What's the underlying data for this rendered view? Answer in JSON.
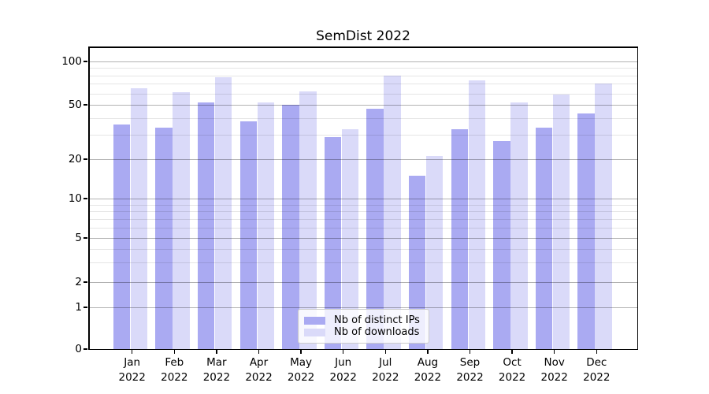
{
  "chart_data": {
    "type": "bar",
    "title": "SemDist 2022",
    "categories": [
      "Jan",
      "Feb",
      "Mar",
      "Apr",
      "May",
      "Jun",
      "Jul",
      "Aug",
      "Sep",
      "Oct",
      "Nov",
      "Dec"
    ],
    "category_year": "2022",
    "series": [
      {
        "name": "Nb of distinct IPs",
        "color": "#aaaaf2",
        "values": [
          36,
          34,
          52,
          38,
          50,
          29,
          47,
          15,
          33,
          27,
          34,
          43
        ]
      },
      {
        "name": "Nb of downloads",
        "color": "#dadaf9",
        "values": [
          65,
          61,
          78,
          52,
          62,
          33,
          80,
          21,
          74,
          52,
          59,
          70
        ]
      }
    ],
    "xlabel": "",
    "ylabel": "",
    "yscale": "symlog",
    "yticks": [
      0,
      1,
      2,
      5,
      10,
      20,
      50,
      100
    ],
    "yminorticks": [
      3,
      4,
      6,
      7,
      8,
      9,
      30,
      40,
      60,
      70,
      80,
      90
    ],
    "ylim": [
      0,
      127
    ],
    "grid": true,
    "legend": {
      "position": "lower center"
    }
  }
}
